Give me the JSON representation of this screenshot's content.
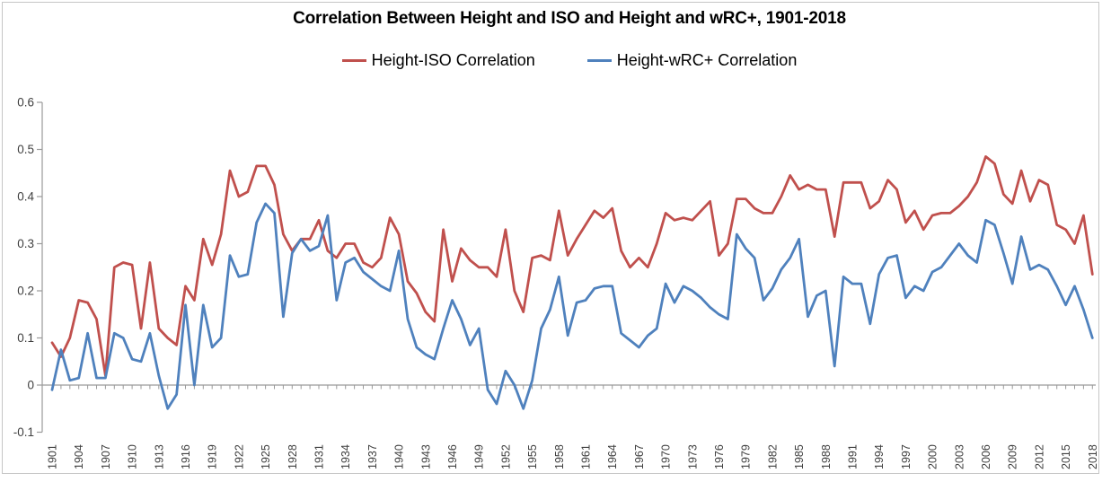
{
  "window": {
    "background": "#ffffff",
    "border_color": "#c6c6c6"
  },
  "chart_data": {
    "type": "line",
    "title": "Correlation Between Height and ISO and Height and wRC+, 1901-2018",
    "xlabel": "",
    "ylabel": "",
    "year_range": [
      1901,
      2018
    ],
    "ylim": [
      -0.1,
      0.6
    ],
    "grid": "none",
    "legend_position": "top",
    "y_tick_labels": [
      "0.6",
      "0.5",
      "0.4",
      "0.3",
      "0.2",
      "0.1",
      "0",
      "-0.1"
    ],
    "x_tick_labels": [
      "1901",
      "1904",
      "1907",
      "1910",
      "1913",
      "1916",
      "1919",
      "1922",
      "1925",
      "1928",
      "1931",
      "1934",
      "1937",
      "1940",
      "1943",
      "1946",
      "1949",
      "1952",
      "1955",
      "1958",
      "1961",
      "1964",
      "1967",
      "1970",
      "1973",
      "1976",
      "1979",
      "1982",
      "1985",
      "1988",
      "1991",
      "1994",
      "1997",
      "2000",
      "2003",
      "2006",
      "2009",
      "2012",
      "2015",
      "2018"
    ],
    "axis_color": "#9a9a9a",
    "series": [
      {
        "name": "Height-ISO Correlation",
        "color": "#C0504D",
        "values": [
          0.09,
          0.06,
          0.1,
          0.18,
          0.175,
          0.14,
          0.02,
          0.25,
          0.26,
          0.255,
          0.12,
          0.26,
          0.12,
          0.1,
          0.085,
          0.21,
          0.18,
          0.31,
          0.255,
          0.32,
          0.455,
          0.4,
          0.41,
          0.465,
          0.465,
          0.425,
          0.32,
          0.285,
          0.31,
          0.31,
          0.35,
          0.285,
          0.27,
          0.3,
          0.3,
          0.26,
          0.25,
          0.27,
          0.355,
          0.32,
          0.22,
          0.195,
          0.155,
          0.135,
          0.33,
          0.22,
          0.29,
          0.265,
          0.25,
          0.25,
          0.23,
          0.33,
          0.2,
          0.155,
          0.27,
          0.275,
          0.265,
          0.37,
          0.275,
          0.31,
          0.34,
          0.37,
          0.355,
          0.375,
          0.285,
          0.25,
          0.27,
          0.25,
          0.3,
          0.365,
          0.35,
          0.355,
          0.35,
          0.37,
          0.39,
          0.275,
          0.3,
          0.395,
          0.395,
          0.375,
          0.365,
          0.365,
          0.4,
          0.445,
          0.415,
          0.425,
          0.415,
          0.415,
          0.315,
          0.43,
          0.43,
          0.43,
          0.375,
          0.39,
          0.435,
          0.415,
          0.345,
          0.37,
          0.33,
          0.36,
          0.365,
          0.365,
          0.38,
          0.4,
          0.43,
          0.485,
          0.47,
          0.405,
          0.385,
          0.455,
          0.39,
          0.435,
          0.425,
          0.34,
          0.33,
          0.3,
          0.36,
          0.235
        ]
      },
      {
        "name": "Height-wRC+ Correlation",
        "color": "#4F81BD",
        "values": [
          -0.01,
          0.075,
          0.01,
          0.015,
          0.11,
          0.015,
          0.015,
          0.11,
          0.1,
          0.055,
          0.05,
          0.11,
          0.02,
          -0.05,
          -0.02,
          0.17,
          0.0,
          0.17,
          0.08,
          0.1,
          0.275,
          0.23,
          0.235,
          0.345,
          0.385,
          0.365,
          0.145,
          0.28,
          0.31,
          0.285,
          0.295,
          0.36,
          0.18,
          0.26,
          0.27,
          0.24,
          0.225,
          0.21,
          0.2,
          0.285,
          0.14,
          0.08,
          0.065,
          0.055,
          0.12,
          0.18,
          0.14,
          0.085,
          0.12,
          -0.01,
          -0.04,
          0.03,
          0.0,
          -0.05,
          0.01,
          0.12,
          0.16,
          0.23,
          0.105,
          0.175,
          0.18,
          0.205,
          0.21,
          0.21,
          0.11,
          0.095,
          0.08,
          0.105,
          0.12,
          0.215,
          0.175,
          0.21,
          0.2,
          0.185,
          0.165,
          0.15,
          0.14,
          0.32,
          0.29,
          0.27,
          0.18,
          0.205,
          0.245,
          0.27,
          0.31,
          0.145,
          0.19,
          0.2,
          0.04,
          0.23,
          0.215,
          0.215,
          0.13,
          0.235,
          0.27,
          0.275,
          0.185,
          0.21,
          0.2,
          0.24,
          0.25,
          0.275,
          0.3,
          0.275,
          0.26,
          0.35,
          0.34,
          0.28,
          0.215,
          0.315,
          0.245,
          0.255,
          0.245,
          0.21,
          0.17,
          0.21,
          0.16,
          0.1
        ]
      }
    ]
  }
}
